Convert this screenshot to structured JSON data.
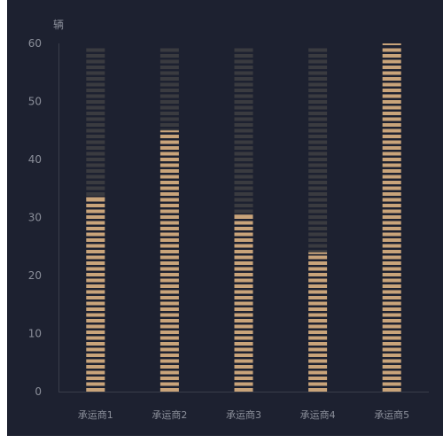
{
  "chart_data": {
    "type": "bar",
    "ylabel": "辆",
    "categories": [
      "承运商1",
      "承运商2",
      "承运商3",
      "承运商4",
      "承运商5"
    ],
    "series": [
      {
        "values": [
          33.5,
          45,
          30.5,
          24,
          60
        ]
      }
    ],
    "ylim": [
      0,
      60
    ],
    "yticks": [
      0,
      10,
      20,
      30,
      40,
      50,
      60
    ],
    "grid": false,
    "colors": {
      "background": "#1d2130",
      "bar_fill": "#c9a47a",
      "bar_track": "#3a3b40",
      "axis_line": "#3a3e4a",
      "text": "#8b8f9a"
    }
  }
}
